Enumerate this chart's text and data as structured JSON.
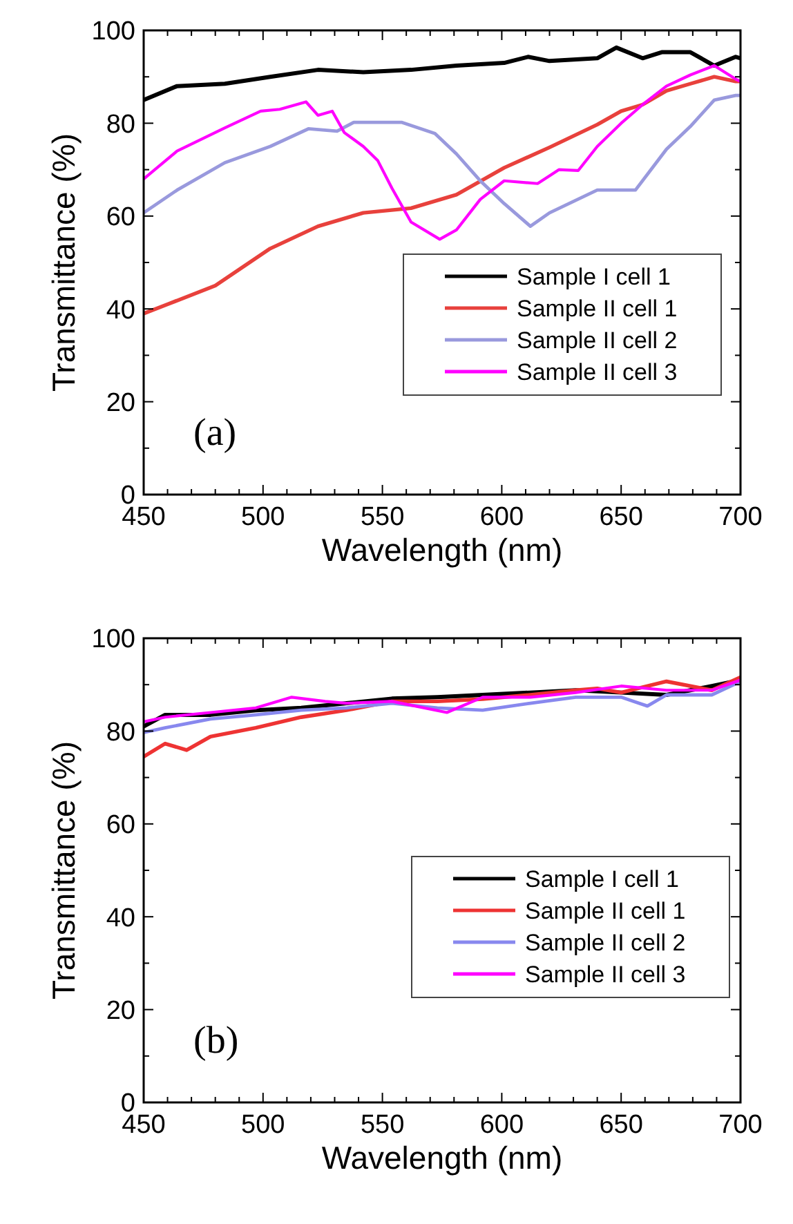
{
  "chart_data": [
    {
      "type": "line",
      "xlabel": "Wavelength (nm)",
      "ylabel": "Transmittance (%)",
      "xlim": [
        450,
        700
      ],
      "ylim": [
        0,
        100
      ],
      "xticks": [
        450,
        500,
        550,
        600,
        650,
        700
      ],
      "yticks": [
        0,
        20,
        40,
        60,
        80,
        100
      ],
      "legend": "bottom right",
      "annotations": [
        "(a)"
      ],
      "series": [
        {
          "name": "Sample I cell 1",
          "color": "#000000",
          "x": [
            450,
            464,
            484,
            503,
            523,
            542,
            562,
            581,
            601,
            611,
            620,
            640,
            648,
            659,
            667,
            679,
            689,
            698,
            700
          ],
          "values": [
            85,
            88,
            88.5,
            90,
            91.5,
            91,
            91.5,
            92.4,
            93,
            94.3,
            93.4,
            94,
            96.3,
            94,
            95.3,
            95.3,
            92.4,
            94.3,
            94
          ]
        },
        {
          "name": "Sample II cell 1",
          "color": "#e8413c",
          "x": [
            450,
            460,
            480,
            503,
            523,
            542,
            562,
            581,
            601,
            620,
            640,
            650,
            659,
            669,
            679,
            689,
            698,
            700
          ],
          "values": [
            39,
            41,
            45,
            53,
            57.8,
            60.7,
            61.7,
            64.6,
            70.4,
            74.8,
            79.7,
            82.6,
            84,
            87,
            88.5,
            90,
            89,
            89
          ]
        },
        {
          "name": "Sample II cell 2",
          "color": "#9999dd",
          "x": [
            450,
            464,
            484,
            503,
            519,
            531,
            538,
            558,
            572,
            581,
            591,
            601,
            612,
            620,
            640,
            656,
            669,
            679,
            689,
            698,
            700
          ],
          "values": [
            60.7,
            65.6,
            71.5,
            75,
            78.8,
            78.3,
            80.2,
            80.2,
            77.8,
            73.4,
            67.6,
            62.7,
            57.8,
            60.7,
            65.6,
            65.6,
            74.4,
            79.3,
            85,
            86,
            86
          ]
        },
        {
          "name": "Sample II cell 3",
          "color": "#ff00ff",
          "x": [
            450,
            464,
            484,
            499,
            507,
            518,
            523,
            529,
            534,
            542,
            548,
            554,
            562,
            574,
            581,
            591,
            601,
            615,
            624,
            632,
            640,
            650,
            659,
            669,
            679,
            689,
            698,
            700
          ],
          "values": [
            68,
            74,
            79,
            82.6,
            83,
            84.6,
            81.7,
            82.6,
            78,
            75,
            72,
            66,
            58.7,
            55,
            57,
            63.6,
            67.6,
            67,
            70,
            69.8,
            75,
            80,
            84,
            88,
            90.4,
            92.4,
            89.5,
            89
          ]
        }
      ]
    },
    {
      "type": "line",
      "xlabel": "Wavelength (nm)",
      "ylabel": "Transmittance (%)",
      "xlim": [
        450,
        700
      ],
      "ylim": [
        0,
        100
      ],
      "xticks": [
        450,
        500,
        550,
        600,
        650,
        700
      ],
      "yticks": [
        0,
        20,
        40,
        60,
        80,
        100
      ],
      "legend": "right",
      "annotations": [
        "(b)"
      ],
      "series": [
        {
          "name": "Sample I cell 1",
          "color": "#000000",
          "x": [
            450,
            459,
            478,
            497,
            516,
            535,
            554,
            573,
            592,
            612,
            631,
            650,
            669,
            688,
            700
          ],
          "values": [
            81,
            83.5,
            83.5,
            84.5,
            85,
            86,
            87,
            87.3,
            87.8,
            88.3,
            88.8,
            88.3,
            87.8,
            89.7,
            91
          ]
        },
        {
          "name": "Sample II cell 1",
          "color": "#ee3333",
          "x": [
            450,
            459,
            468,
            478,
            497,
            516,
            535,
            554,
            573,
            592,
            612,
            631,
            640,
            650,
            669,
            688,
            700
          ],
          "values": [
            74.5,
            77.3,
            75.9,
            78.8,
            80.7,
            83,
            84.5,
            86.4,
            86.4,
            86.9,
            87.8,
            88.8,
            89.2,
            88.3,
            90.7,
            88.8,
            91.6
          ]
        },
        {
          "name": "Sample II cell 2",
          "color": "#8888ee",
          "x": [
            450,
            459,
            478,
            497,
            516,
            535,
            554,
            573,
            592,
            612,
            631,
            650,
            661,
            669,
            688,
            700
          ],
          "values": [
            79.7,
            80.7,
            82.6,
            83.5,
            84.5,
            85,
            86,
            85,
            84.5,
            86,
            87.3,
            87.3,
            85.4,
            87.8,
            87.8,
            90.7
          ]
        },
        {
          "name": "Sample II cell 3",
          "color": "#ff00ff",
          "x": [
            450,
            459,
            478,
            497,
            512,
            526,
            535,
            554,
            577,
            592,
            612,
            631,
            650,
            669,
            688,
            700
          ],
          "values": [
            82,
            83,
            84,
            85,
            87.3,
            86.4,
            86,
            86.4,
            84,
            87.3,
            87.3,
            88.3,
            89.7,
            88.8,
            88.8,
            91
          ]
        }
      ]
    }
  ]
}
